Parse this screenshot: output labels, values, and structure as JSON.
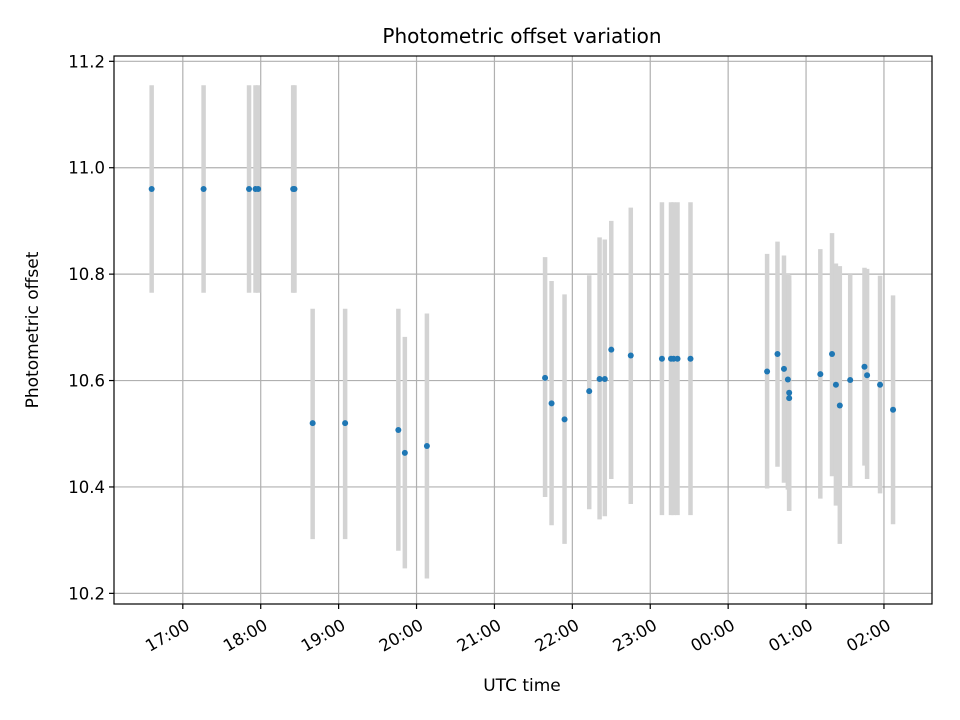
{
  "chart_data": {
    "type": "scatter",
    "title": "Photometric offset variation",
    "xlabel": "UTC time",
    "ylabel": "Photometric offset",
    "x_tick_labels": [
      "17:00",
      "18:00",
      "19:00",
      "20:00",
      "21:00",
      "22:00",
      "23:00",
      "00:00",
      "01:00",
      "02:00"
    ],
    "y_tick_labels": [
      "10.2",
      "10.4",
      "10.6",
      "10.8",
      "11.0",
      "11.2"
    ],
    "xlim": [
      "16:07",
      "02:37"
    ],
    "ylim": [
      10.18,
      11.21
    ],
    "grid": true,
    "colors": {
      "point": "#1f77b4",
      "errorbar": "#d3d3d3",
      "grid": "#b0b0b0"
    },
    "points": [
      {
        "time": "16:36",
        "y": 10.96,
        "y_low": 10.765,
        "y_high": 11.155
      },
      {
        "time": "17:16",
        "y": 10.96,
        "y_low": 10.765,
        "y_high": 11.155
      },
      {
        "time": "17:51",
        "y": 10.96,
        "y_low": 10.765,
        "y_high": 11.155
      },
      {
        "time": "17:56",
        "y": 10.96,
        "y_low": 10.765,
        "y_high": 11.155
      },
      {
        "time": "17:58",
        "y": 10.96,
        "y_low": 10.765,
        "y_high": 11.155
      },
      {
        "time": "18:25",
        "y": 10.96,
        "y_low": 10.765,
        "y_high": 11.155
      },
      {
        "time": "18:26",
        "y": 10.96,
        "y_low": 10.765,
        "y_high": 11.155
      },
      {
        "time": "18:40",
        "y": 10.52,
        "y_low": 10.302,
        "y_high": 10.735
      },
      {
        "time": "19:05",
        "y": 10.52,
        "y_low": 10.302,
        "y_high": 10.735
      },
      {
        "time": "19:46",
        "y": 10.507,
        "y_low": 10.28,
        "y_high": 10.735
      },
      {
        "time": "19:51",
        "y": 10.464,
        "y_low": 10.247,
        "y_high": 10.682
      },
      {
        "time": "20:08",
        "y": 10.477,
        "y_low": 10.228,
        "y_high": 10.726
      },
      {
        "time": "21:39",
        "y": 10.605,
        "y_low": 10.381,
        "y_high": 10.832
      },
      {
        "time": "21:44",
        "y": 10.557,
        "y_low": 10.328,
        "y_high": 10.787
      },
      {
        "time": "21:54",
        "y": 10.527,
        "y_low": 10.293,
        "y_high": 10.762
      },
      {
        "time": "22:13",
        "y": 10.58,
        "y_low": 10.358,
        "y_high": 10.798
      },
      {
        "time": "22:21",
        "y": 10.603,
        "y_low": 10.339,
        "y_high": 10.869
      },
      {
        "time": "22:25",
        "y": 10.603,
        "y_low": 10.345,
        "y_high": 10.865
      },
      {
        "time": "22:30",
        "y": 10.658,
        "y_low": 10.415,
        "y_high": 10.9
      },
      {
        "time": "22:45",
        "y": 10.647,
        "y_low": 10.368,
        "y_high": 10.925
      },
      {
        "time": "23:09",
        "y": 10.641,
        "y_low": 10.347,
        "y_high": 10.935
      },
      {
        "time": "23:16",
        "y": 10.641,
        "y_low": 10.347,
        "y_high": 10.935
      },
      {
        "time": "23:18",
        "y": 10.641,
        "y_low": 10.347,
        "y_high": 10.935
      },
      {
        "time": "23:21",
        "y": 10.641,
        "y_low": 10.347,
        "y_high": 10.935
      },
      {
        "time": "23:31",
        "y": 10.641,
        "y_low": 10.347,
        "y_high": 10.935
      },
      {
        "time": "00:30",
        "y": 10.617,
        "y_low": 10.397,
        "y_high": 10.838
      },
      {
        "time": "00:38",
        "y": 10.65,
        "y_low": 10.438,
        "y_high": 10.861
      },
      {
        "time": "00:43",
        "y": 10.622,
        "y_low": 10.408,
        "y_high": 10.835
      },
      {
        "time": "00:46",
        "y": 10.602,
        "y_low": 10.395,
        "y_high": 10.802
      },
      {
        "time": "00:47",
        "y": 10.577,
        "y_low": 10.355,
        "y_high": 10.798
      },
      {
        "time": "00:47",
        "y": 10.567,
        "y_low": 10.355,
        "y_high": 10.788
      },
      {
        "time": "01:11",
        "y": 10.612,
        "y_low": 10.378,
        "y_high": 10.847
      },
      {
        "time": "01:20",
        "y": 10.65,
        "y_low": 10.42,
        "y_high": 10.877
      },
      {
        "time": "01:23",
        "y": 10.592,
        "y_low": 10.365,
        "y_high": 10.82
      },
      {
        "time": "01:26",
        "y": 10.553,
        "y_low": 10.293,
        "y_high": 10.815
      },
      {
        "time": "01:34",
        "y": 10.601,
        "y_low": 10.4,
        "y_high": 10.8
      },
      {
        "time": "01:45",
        "y": 10.626,
        "y_low": 10.44,
        "y_high": 10.812
      },
      {
        "time": "01:47",
        "y": 10.61,
        "y_low": 10.415,
        "y_high": 10.81
      },
      {
        "time": "01:57",
        "y": 10.592,
        "y_low": 10.388,
        "y_high": 10.797
      },
      {
        "time": "02:07",
        "y": 10.545,
        "y_low": 10.33,
        "y_high": 10.76
      }
    ]
  }
}
